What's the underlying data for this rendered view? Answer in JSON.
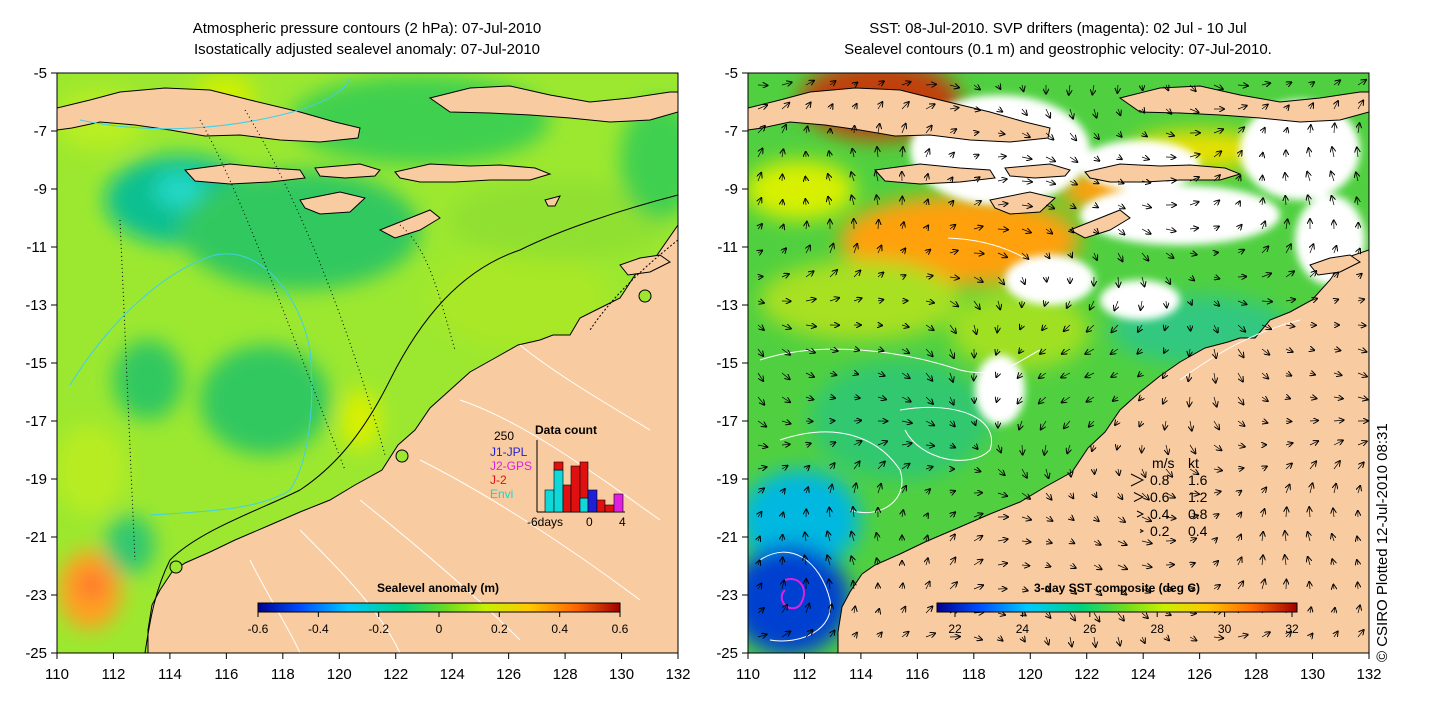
{
  "left_panel": {
    "title_line1": "Atmospheric pressure contours (2 hPa): 07-Jul-2010",
    "title_line2": "Isostatically adjusted sealevel anomaly: 07-Jul-2010",
    "x_ticks": [
      "110",
      "112",
      "114",
      "116",
      "118",
      "120",
      "122",
      "124",
      "126",
      "128",
      "130",
      "132"
    ],
    "y_ticks": [
      "-5",
      "-7",
      "-9",
      "-11",
      "-13",
      "-15",
      "-17",
      "-19",
      "-21",
      "-23",
      "-25"
    ],
    "colorbar": {
      "label": "Sealevel anomaly (m)",
      "ticks": [
        "-0.6",
        "-0.4",
        "-0.2",
        "0",
        "0.2",
        "0.4",
        "0.6"
      ]
    },
    "inset": {
      "title": "Data count",
      "y_max_label": "250",
      "series": [
        {
          "name": "J1-JPL",
          "color": "#1f1fd6"
        },
        {
          "name": "J2-GPS",
          "color": "#e020e0"
        },
        {
          "name": "J-2",
          "color": "#e01010"
        },
        {
          "name": "Envi",
          "color": "#10d8d8"
        }
      ],
      "x_labels": [
        "-6days",
        "0",
        "4"
      ]
    }
  },
  "right_panel": {
    "title_line1": "SST: 08-Jul-2010. SVP drifters (magenta): 02 Jul - 10 Jul",
    "title_line2": "Sealevel contours (0.1 m) and geostrophic velocity: 07-Jul-2010.",
    "x_ticks": [
      "110",
      "112",
      "114",
      "116",
      "118",
      "120",
      "122",
      "124",
      "126",
      "128",
      "130",
      "132"
    ],
    "y_ticks": [
      "-5",
      "-7",
      "-9",
      "-11",
      "-13",
      "-15",
      "-17",
      "-19",
      "-21",
      "-23",
      "-25"
    ],
    "colorbar": {
      "label": "3-day SST composite (deg C)",
      "ticks": [
        "22",
        "24",
        "26",
        "28",
        "30",
        "32"
      ]
    },
    "velocity_legend": {
      "header_ms": "m/s",
      "header_kt": "kt",
      "rows": [
        {
          "ms": "0.8",
          "kt": "1.6"
        },
        {
          "ms": "0.6",
          "kt": "1.2"
        },
        {
          "ms": "0.4",
          "kt": "0.8"
        },
        {
          "ms": "0.2",
          "kt": "0.4"
        }
      ]
    }
  },
  "credit": "© CSIRO Plotted 12-Jul-2010 08:31",
  "colors": {
    "land": "#f9cba0",
    "sla_scale": [
      "#00008f",
      "#0050ff",
      "#00c8ff",
      "#00d080",
      "#6cdc20",
      "#c8f000",
      "#ffc800",
      "#ff6400",
      "#a00000"
    ],
    "sst_scale": [
      "#00008f",
      "#0050ff",
      "#00c8ff",
      "#00d080",
      "#6cdc20",
      "#c8f000",
      "#ffc800",
      "#ff6400",
      "#a00000"
    ]
  }
}
